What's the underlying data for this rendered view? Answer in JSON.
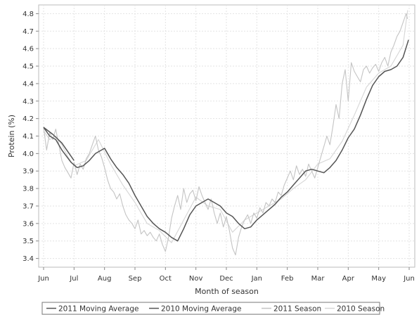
{
  "chart_data": {
    "type": "line",
    "xlabel": "Month of season",
    "ylabel": "Protein (%)",
    "x_ticks": [
      "Jun",
      "Jul",
      "Aug",
      "Sep",
      "Oct",
      "Nov",
      "Dec",
      "Jan",
      "Feb",
      "Mar",
      "Apr",
      "May",
      "Jun"
    ],
    "y_ticks": [
      "3.4",
      "3.5",
      "3.6",
      "3.7",
      "3.8",
      "3.9",
      "4.0",
      "4.1",
      "4.2",
      "4.3",
      "4.4",
      "4.5",
      "4.6",
      "4.7",
      "4.8"
    ],
    "ylim": [
      3.35,
      4.85
    ],
    "grid": true,
    "legend_position": "bottom",
    "series": [
      {
        "name": "2011 Moving Average",
        "color": "#555555",
        "x": [
          0.0,
          0.2,
          0.4,
          0.6,
          0.9,
          1.1,
          1.3,
          1.5,
          1.7,
          2.0,
          2.2,
          2.4,
          2.6,
          2.8,
          3.0,
          3.2,
          3.4,
          3.6,
          3.8,
          4.0,
          4.2,
          4.4,
          4.6,
          4.8,
          5.0,
          5.2,
          5.4,
          5.6,
          5.8,
          6.0,
          6.2,
          6.4,
          6.6,
          6.8,
          7.0,
          7.2,
          7.4,
          7.6,
          7.8,
          8.0,
          8.2,
          8.4,
          8.6,
          8.8,
          9.0,
          9.2,
          9.4,
          9.6,
          9.8,
          10.0,
          10.2,
          10.4,
          10.6,
          10.8,
          11.0,
          11.2,
          11.4,
          11.6,
          11.8,
          11.98
        ],
        "y": [
          4.15,
          4.1,
          4.08,
          4.02,
          3.95,
          3.92,
          3.93,
          3.96,
          4.0,
          4.03,
          3.97,
          3.92,
          3.88,
          3.83,
          3.76,
          3.7,
          3.64,
          3.6,
          3.57,
          3.55,
          3.52,
          3.5,
          3.57,
          3.65,
          3.7,
          3.72,
          3.74,
          3.72,
          3.7,
          3.66,
          3.64,
          3.6,
          3.57,
          3.58,
          3.62,
          3.65,
          3.68,
          3.71,
          3.75,
          3.78,
          3.82,
          3.86,
          3.9,
          3.91,
          3.9,
          3.89,
          3.92,
          3.96,
          4.02,
          4.09,
          4.14,
          4.22,
          4.31,
          4.39,
          4.44,
          4.47,
          4.48,
          4.5,
          4.55,
          4.65
        ]
      },
      {
        "name": "2010 Moving Average",
        "color": "#555555",
        "x": [
          0.0,
          0.3,
          0.6,
          1.0
        ],
        "y": [
          4.15,
          4.11,
          4.06,
          3.96
        ]
      },
      {
        "name": "2011 Season",
        "color": "#c4c4c4",
        "x": [
          0.0,
          0.1,
          0.2,
          0.3,
          0.4,
          0.5,
          0.6,
          0.7,
          0.8,
          0.9,
          1.0,
          1.1,
          1.2,
          1.3,
          1.4,
          1.5,
          1.6,
          1.7,
          1.8,
          1.9,
          2.0,
          2.1,
          2.2,
          2.3,
          2.4,
          2.5,
          2.6,
          2.7,
          2.8,
          2.9,
          3.0,
          3.1,
          3.2,
          3.3,
          3.4,
          3.5,
          3.6,
          3.7,
          3.8,
          3.9,
          4.0,
          4.1,
          4.2,
          4.3,
          4.4,
          4.5,
          4.6,
          4.7,
          4.8,
          4.9,
          5.0,
          5.1,
          5.2,
          5.3,
          5.4,
          5.5,
          5.6,
          5.7,
          5.8,
          5.9,
          6.0,
          6.1,
          6.2,
          6.3,
          6.4,
          6.5,
          6.6,
          6.7,
          6.8,
          6.9,
          7.0,
          7.1,
          7.2,
          7.3,
          7.4,
          7.5,
          7.6,
          7.7,
          7.8,
          7.9,
          8.0,
          8.1,
          8.2,
          8.3,
          8.4,
          8.5,
          8.6,
          8.7,
          8.8,
          8.9,
          9.0,
          9.1,
          9.2,
          9.3,
          9.4,
          9.5,
          9.6,
          9.7,
          9.8,
          9.9,
          10.0,
          10.1,
          10.2,
          10.3,
          10.4,
          10.5,
          10.6,
          10.7,
          10.8,
          10.9,
          11.0,
          11.1,
          11.2,
          11.3,
          11.4,
          11.5,
          11.6,
          11.7,
          11.8,
          11.9,
          11.95
        ],
        "y": [
          4.15,
          4.02,
          4.12,
          4.08,
          4.14,
          4.05,
          3.96,
          3.92,
          3.89,
          3.86,
          3.95,
          3.88,
          3.94,
          3.91,
          3.97,
          4.0,
          4.05,
          4.1,
          4.02,
          3.98,
          3.92,
          3.85,
          3.8,
          3.78,
          3.74,
          3.77,
          3.7,
          3.65,
          3.62,
          3.6,
          3.57,
          3.62,
          3.54,
          3.56,
          3.53,
          3.55,
          3.52,
          3.5,
          3.54,
          3.48,
          3.44,
          3.52,
          3.63,
          3.7,
          3.76,
          3.68,
          3.8,
          3.72,
          3.77,
          3.79,
          3.73,
          3.81,
          3.76,
          3.72,
          3.68,
          3.74,
          3.66,
          3.6,
          3.66,
          3.58,
          3.64,
          3.56,
          3.46,
          3.42,
          3.52,
          3.58,
          3.62,
          3.65,
          3.6,
          3.66,
          3.63,
          3.69,
          3.66,
          3.72,
          3.7,
          3.74,
          3.72,
          3.78,
          3.76,
          3.82,
          3.86,
          3.9,
          3.85,
          3.93,
          3.88,
          3.91,
          3.87,
          3.94,
          3.9,
          3.86,
          3.92,
          3.98,
          4.04,
          4.1,
          4.05,
          4.16,
          4.28,
          4.2,
          4.4,
          4.48,
          4.3,
          4.52,
          4.47,
          4.44,
          4.41,
          4.48,
          4.5,
          4.46,
          4.49,
          4.51,
          4.47,
          4.52,
          4.55,
          4.5,
          4.58,
          4.62,
          4.67,
          4.7,
          4.75,
          4.8,
          4.77
        ]
      },
      {
        "name": "2010 Season",
        "color": "#d6d6d6",
        "x": [
          0.0,
          0.2,
          0.4,
          0.6,
          0.8,
          1.0,
          1.4,
          1.8,
          2.2,
          2.6,
          3.0,
          3.4,
          3.8,
          4.2,
          4.6,
          5.0,
          5.4,
          5.8,
          6.2,
          6.6,
          7.0,
          7.4,
          7.8,
          8.2,
          8.6,
          9.0,
          9.4,
          9.8,
          10.2,
          10.6,
          11.0,
          11.4,
          11.8,
          11.95
        ],
        "y": [
          4.13,
          4.08,
          4.1,
          4.05,
          3.98,
          3.93,
          3.96,
          4.08,
          3.94,
          3.82,
          3.72,
          3.6,
          3.56,
          3.49,
          3.62,
          3.75,
          3.7,
          3.68,
          3.55,
          3.62,
          3.66,
          3.7,
          3.74,
          3.8,
          3.85,
          3.94,
          3.97,
          4.07,
          4.22,
          4.38,
          4.46,
          4.5,
          4.62,
          4.82
        ]
      }
    ]
  }
}
